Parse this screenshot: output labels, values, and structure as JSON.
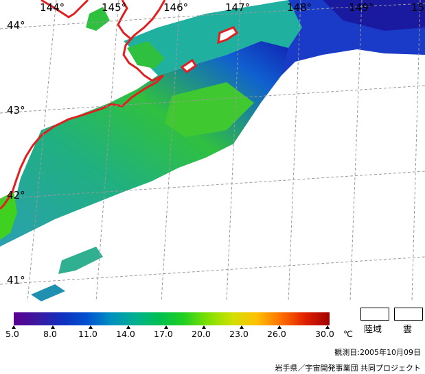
{
  "map": {
    "longitude_labels": [
      "144°",
      "145°",
      "146°",
      "147°",
      "148°",
      "149°",
      "15"
    ],
    "latitude_labels": [
      "44°",
      "43°",
      "42°",
      "41°"
    ]
  },
  "legend": {
    "unit": "℃",
    "ticks": [
      "5.0",
      "8.0",
      "11.0",
      "14.0",
      "17.0",
      "20.0",
      "23.0",
      "26.0",
      "30.0"
    ],
    "land_label": "陸域",
    "cloud_label": "雲",
    "colors": [
      "#5a0090",
      "#3a1aa0",
      "#1030c0",
      "#0050d0",
      "#0090c0",
      "#00b090",
      "#00c050",
      "#20d020",
      "#80e000",
      "#d0e000",
      "#ffc000",
      "#ff7000",
      "#e02000",
      "#a00000"
    ]
  },
  "footer": {
    "observation_date": "観測日:2005年10月09日",
    "credit": "岩手県／宇宙開発事業団 共同プロジェクト"
  }
}
